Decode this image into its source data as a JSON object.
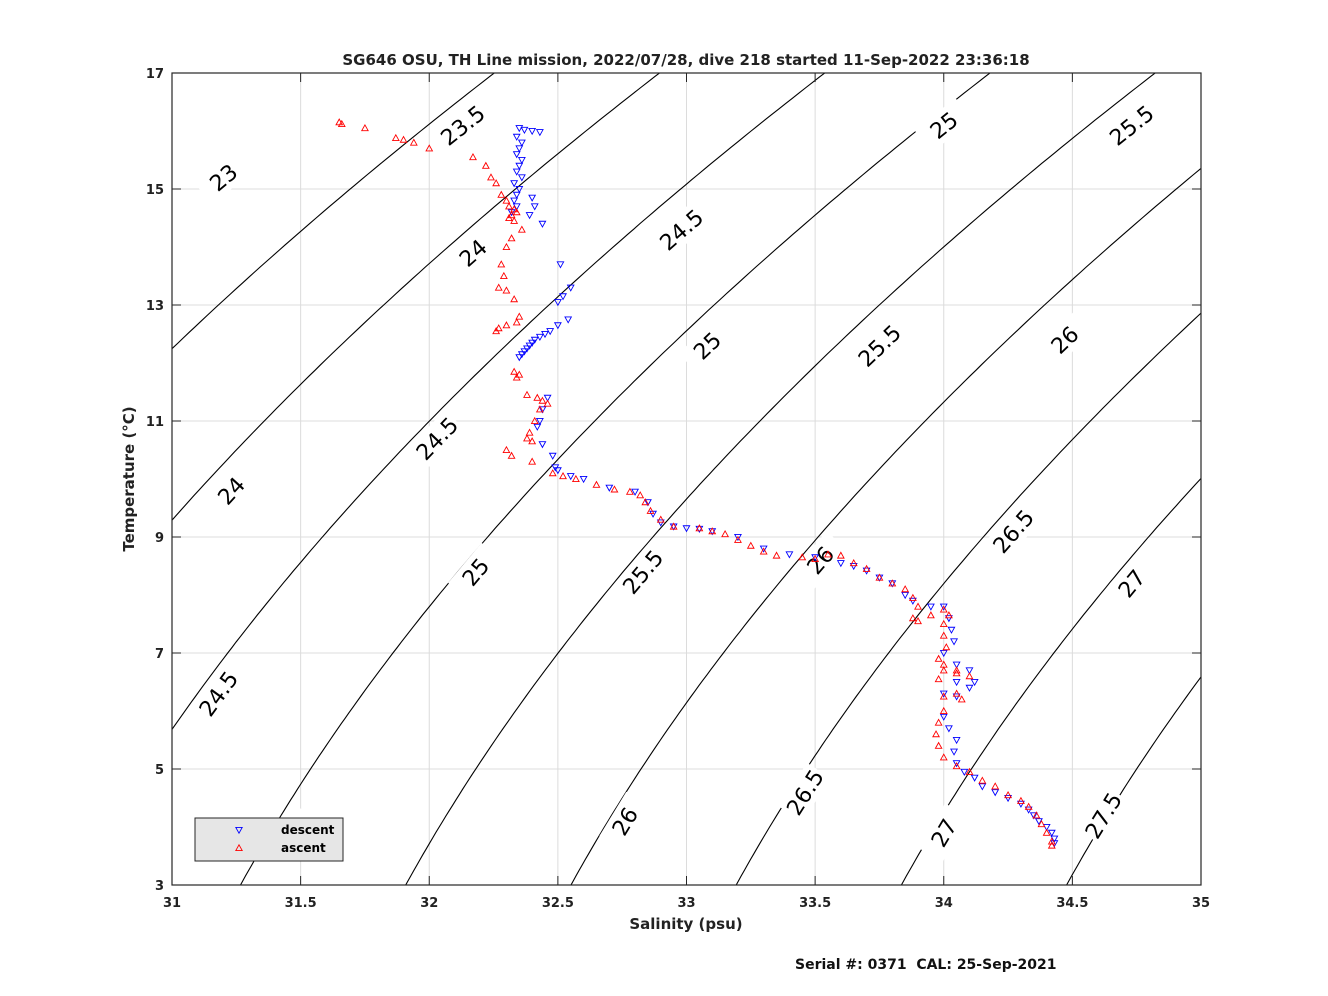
{
  "chart_data": {
    "type": "scatter",
    "title": "SG646 OSU, TH Line mission, 2022/07/28, dive 218 started 11-Sep-2022 23:36:18",
    "xlabel": "Salinity (psu)",
    "ylabel": "Temperature (°C)",
    "xlim": [
      31,
      35
    ],
    "ylim": [
      3,
      17
    ],
    "x_ticks": [
      31,
      31.5,
      32,
      32.5,
      33,
      33.5,
      34,
      34.5,
      35
    ],
    "x_tick_labels": [
      "31",
      "31.5",
      "32",
      "32.5",
      "33",
      "33.5",
      "34",
      "34.5",
      "35"
    ],
    "y_ticks": [
      3,
      5,
      7,
      9,
      11,
      13,
      15,
      17
    ],
    "y_tick_labels": [
      "3",
      "5",
      "7",
      "9",
      "11",
      "13",
      "15",
      "17"
    ],
    "grid": true,
    "legend_position": "bottom-left",
    "contour_levels": [
      22.5,
      23,
      23.5,
      24,
      24.5,
      25,
      25.5,
      26,
      26.5,
      27,
      27.5
    ],
    "contour_labels": [
      {
        "text": "23",
        "x": 31.2,
        "y": 15.2
      },
      {
        "text": "23.5",
        "x": 32.13,
        "y": 16.1
      },
      {
        "text": "25",
        "x": 34.0,
        "y": 16.1
      },
      {
        "text": "25.5",
        "x": 34.73,
        "y": 16.1
      },
      {
        "text": "24",
        "x": 32.17,
        "y": 13.9
      },
      {
        "text": "24.5",
        "x": 32.98,
        "y": 14.3
      },
      {
        "text": "25",
        "x": 33.08,
        "y": 12.3
      },
      {
        "text": "25.5",
        "x": 33.75,
        "y": 12.3
      },
      {
        "text": "26",
        "x": 34.47,
        "y": 12.4
      },
      {
        "text": "24",
        "x": 31.23,
        "y": 9.8
      },
      {
        "text": "24.5",
        "x": 32.03,
        "y": 10.7
      },
      {
        "text": "25",
        "x": 32.18,
        "y": 8.4
      },
      {
        "text": "25.5",
        "x": 32.83,
        "y": 8.4
      },
      {
        "text": "26",
        "x": 33.52,
        "y": 8.6
      },
      {
        "text": "26.5",
        "x": 34.27,
        "y": 9.1
      },
      {
        "text": "27",
        "x": 34.73,
        "y": 8.2
      },
      {
        "text": "24.5",
        "x": 31.18,
        "y": 6.3
      },
      {
        "text": "25",
        "x": 31.46,
        "y": 3.9
      },
      {
        "text": "26",
        "x": 32.76,
        "y": 4.1
      },
      {
        "text": "26.5",
        "x": 33.46,
        "y": 4.6
      },
      {
        "text": "27",
        "x": 34.0,
        "y": 3.9
      },
      {
        "text": "27.5",
        "x": 34.62,
        "y": 4.2
      }
    ],
    "series": [
      {
        "name": "descent",
        "color": "#0000ff",
        "marker": "triangle-down",
        "points": [
          [
            32.35,
            16.05
          ],
          [
            32.37,
            16.02
          ],
          [
            32.4,
            16.0
          ],
          [
            32.43,
            15.98
          ],
          [
            32.34,
            15.9
          ],
          [
            32.36,
            15.8
          ],
          [
            32.35,
            15.7
          ],
          [
            32.34,
            15.6
          ],
          [
            32.36,
            15.5
          ],
          [
            32.35,
            15.4
          ],
          [
            32.34,
            15.3
          ],
          [
            32.36,
            15.2
          ],
          [
            32.33,
            15.1
          ],
          [
            32.35,
            15.0
          ],
          [
            32.34,
            14.9
          ],
          [
            32.33,
            14.8
          ],
          [
            32.34,
            14.7
          ],
          [
            32.32,
            14.6
          ],
          [
            32.4,
            14.85
          ],
          [
            32.41,
            14.7
          ],
          [
            32.39,
            14.55
          ],
          [
            32.44,
            14.4
          ],
          [
            32.51,
            13.7
          ],
          [
            32.55,
            13.3
          ],
          [
            32.52,
            13.15
          ],
          [
            32.5,
            13.05
          ],
          [
            32.54,
            12.75
          ],
          [
            32.5,
            12.65
          ],
          [
            32.47,
            12.55
          ],
          [
            32.45,
            12.5
          ],
          [
            32.43,
            12.45
          ],
          [
            32.41,
            12.4
          ],
          [
            32.4,
            12.35
          ],
          [
            32.39,
            12.3
          ],
          [
            32.38,
            12.25
          ],
          [
            32.37,
            12.2
          ],
          [
            32.36,
            12.15
          ],
          [
            32.35,
            12.1
          ],
          [
            32.46,
            11.4
          ],
          [
            32.44,
            11.2
          ],
          [
            32.43,
            11.0
          ],
          [
            32.42,
            10.9
          ],
          [
            32.44,
            10.6
          ],
          [
            32.48,
            10.4
          ],
          [
            32.49,
            10.2
          ],
          [
            32.5,
            10.15
          ],
          [
            32.55,
            10.05
          ],
          [
            32.6,
            10.0
          ],
          [
            32.7,
            9.85
          ],
          [
            32.8,
            9.78
          ],
          [
            32.85,
            9.6
          ],
          [
            32.87,
            9.4
          ],
          [
            32.9,
            9.25
          ],
          [
            32.95,
            9.18
          ],
          [
            33.0,
            9.15
          ],
          [
            33.05,
            9.14
          ],
          [
            33.1,
            9.1
          ],
          [
            33.2,
            9.0
          ],
          [
            33.3,
            8.8
          ],
          [
            33.4,
            8.7
          ],
          [
            33.5,
            8.65
          ],
          [
            33.6,
            8.55
          ],
          [
            33.65,
            8.5
          ],
          [
            33.7,
            8.42
          ],
          [
            33.75,
            8.3
          ],
          [
            33.8,
            8.2
          ],
          [
            33.85,
            8.0
          ],
          [
            33.88,
            7.9
          ],
          [
            33.95,
            7.8
          ],
          [
            34.0,
            7.8
          ],
          [
            34.02,
            7.6
          ],
          [
            34.03,
            7.4
          ],
          [
            34.04,
            7.2
          ],
          [
            34.0,
            7.0
          ],
          [
            34.05,
            6.8
          ],
          [
            34.1,
            6.7
          ],
          [
            34.12,
            6.5
          ],
          [
            34.1,
            6.4
          ],
          [
            34.05,
            6.5
          ],
          [
            34.0,
            6.3
          ],
          [
            34.05,
            6.25
          ],
          [
            34.0,
            5.9
          ],
          [
            34.02,
            5.7
          ],
          [
            34.05,
            5.5
          ],
          [
            34.04,
            5.3
          ],
          [
            34.05,
            5.1
          ],
          [
            34.08,
            4.95
          ],
          [
            34.12,
            4.85
          ],
          [
            34.15,
            4.7
          ],
          [
            34.2,
            4.6
          ],
          [
            34.25,
            4.5
          ],
          [
            34.3,
            4.4
          ],
          [
            34.33,
            4.3
          ],
          [
            34.35,
            4.2
          ],
          [
            34.37,
            4.1
          ],
          [
            34.4,
            4.0
          ],
          [
            34.42,
            3.9
          ],
          [
            34.43,
            3.8
          ],
          [
            34.43,
            3.72
          ]
        ]
      },
      {
        "name": "ascent",
        "color": "#ff0000",
        "marker": "triangle-up",
        "points": [
          [
            31.65,
            16.15
          ],
          [
            31.66,
            16.12
          ],
          [
            31.75,
            16.05
          ],
          [
            31.87,
            15.88
          ],
          [
            31.9,
            15.85
          ],
          [
            31.94,
            15.8
          ],
          [
            32.0,
            15.7
          ],
          [
            32.17,
            15.55
          ],
          [
            32.22,
            15.4
          ],
          [
            32.24,
            15.2
          ],
          [
            32.26,
            15.1
          ],
          [
            32.28,
            14.9
          ],
          [
            32.3,
            14.8
          ],
          [
            32.31,
            14.7
          ],
          [
            32.33,
            14.65
          ],
          [
            32.32,
            14.55
          ],
          [
            32.31,
            14.5
          ],
          [
            32.33,
            14.45
          ],
          [
            32.34,
            14.6
          ],
          [
            32.36,
            14.3
          ],
          [
            32.32,
            14.15
          ],
          [
            32.3,
            14.0
          ],
          [
            32.28,
            13.7
          ],
          [
            32.29,
            13.5
          ],
          [
            32.27,
            13.3
          ],
          [
            32.3,
            13.25
          ],
          [
            32.33,
            13.1
          ],
          [
            32.35,
            12.8
          ],
          [
            32.34,
            12.7
          ],
          [
            32.3,
            12.65
          ],
          [
            32.27,
            12.6
          ],
          [
            32.26,
            12.55
          ],
          [
            32.33,
            11.85
          ],
          [
            32.35,
            11.8
          ],
          [
            32.34,
            11.75
          ],
          [
            32.38,
            11.45
          ],
          [
            32.42,
            11.4
          ],
          [
            32.44,
            11.35
          ],
          [
            32.46,
            11.3
          ],
          [
            32.43,
            11.2
          ],
          [
            32.41,
            11.0
          ],
          [
            32.39,
            10.8
          ],
          [
            32.38,
            10.7
          ],
          [
            32.4,
            10.65
          ],
          [
            32.3,
            10.5
          ],
          [
            32.32,
            10.4
          ],
          [
            32.4,
            10.3
          ],
          [
            32.48,
            10.1
          ],
          [
            32.52,
            10.05
          ],
          [
            32.57,
            10.0
          ],
          [
            32.65,
            9.9
          ],
          [
            32.72,
            9.82
          ],
          [
            32.78,
            9.78
          ],
          [
            32.82,
            9.72
          ],
          [
            32.84,
            9.6
          ],
          [
            32.86,
            9.45
          ],
          [
            32.9,
            9.3
          ],
          [
            32.95,
            9.18
          ],
          [
            33.05,
            9.15
          ],
          [
            33.1,
            9.1
          ],
          [
            33.15,
            9.05
          ],
          [
            33.2,
            8.95
          ],
          [
            33.25,
            8.85
          ],
          [
            33.3,
            8.75
          ],
          [
            33.35,
            8.68
          ],
          [
            33.45,
            8.65
          ],
          [
            33.5,
            8.62
          ],
          [
            33.55,
            8.7
          ],
          [
            33.6,
            8.68
          ],
          [
            33.65,
            8.55
          ],
          [
            33.7,
            8.45
          ],
          [
            33.75,
            8.3
          ],
          [
            33.8,
            8.2
          ],
          [
            33.85,
            8.1
          ],
          [
            33.88,
            7.95
          ],
          [
            33.9,
            7.8
          ],
          [
            33.88,
            7.6
          ],
          [
            33.9,
            7.55
          ],
          [
            33.95,
            7.65
          ],
          [
            34.0,
            7.75
          ],
          [
            34.02,
            7.65
          ],
          [
            34.0,
            7.5
          ],
          [
            34.0,
            7.3
          ],
          [
            34.01,
            7.1
          ],
          [
            33.98,
            6.9
          ],
          [
            34.0,
            6.8
          ],
          [
            34.05,
            6.7
          ],
          [
            34.1,
            6.6
          ],
          [
            34.05,
            6.65
          ],
          [
            34.0,
            6.7
          ],
          [
            33.98,
            6.55
          ],
          [
            34.05,
            6.3
          ],
          [
            34.07,
            6.2
          ],
          [
            34.0,
            6.25
          ],
          [
            34.0,
            6.0
          ],
          [
            33.98,
            5.8
          ],
          [
            33.97,
            5.6
          ],
          [
            33.98,
            5.4
          ],
          [
            34.0,
            5.2
          ],
          [
            34.05,
            5.05
          ],
          [
            34.1,
            4.95
          ],
          [
            34.15,
            4.8
          ],
          [
            34.2,
            4.7
          ],
          [
            34.25,
            4.55
          ],
          [
            34.3,
            4.45
          ],
          [
            34.33,
            4.35
          ],
          [
            34.36,
            4.2
          ],
          [
            34.38,
            4.05
          ],
          [
            34.4,
            3.9
          ],
          [
            34.42,
            3.75
          ],
          [
            34.42,
            3.68
          ]
        ]
      }
    ]
  },
  "footer": {
    "serial_label": "Serial #: 0371  CAL: 25-Sep-2021"
  }
}
